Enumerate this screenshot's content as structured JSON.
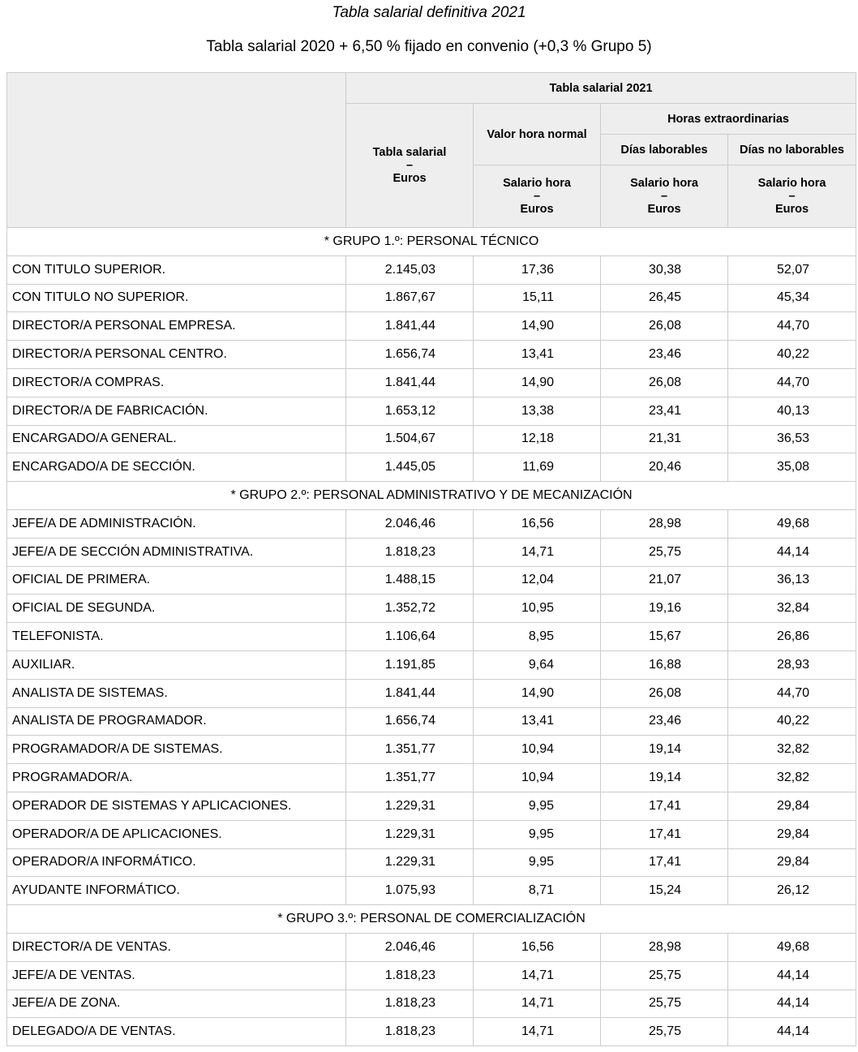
{
  "title": "Tabla salarial definitiva 2021",
  "subtitle": "Tabla salarial 2020 + 6,50 % fijado en convenio (+0,3 % Grupo 5)",
  "header": {
    "year": "Tabla salarial 2021",
    "tabla": [
      "Tabla salarial",
      "–",
      "Euros"
    ],
    "valor_hora": "Valor hora normal",
    "horas_extra": "Horas extraordinarias",
    "dias_lab": "Días laborables",
    "dias_no_lab": "Días no laborables",
    "salario_hora": [
      "Salario hora",
      "–",
      "Euros"
    ]
  },
  "groups": [
    {
      "title": "* GRUPO 1.º: PERSONAL TÉCNICO",
      "rows": [
        [
          "CON TITULO SUPERIOR.",
          "2.145,03",
          "17,36",
          "30,38",
          "52,07"
        ],
        [
          "CON TITULO NO SUPERIOR.",
          "1.867,67",
          "15,11",
          "26,45",
          "45,34"
        ],
        [
          "DIRECTOR/A PERSONAL EMPRESA.",
          "1.841,44",
          "14,90",
          "26,08",
          "44,70"
        ],
        [
          "DIRECTOR/A PERSONAL CENTRO.",
          "1.656,74",
          "13,41",
          "23,46",
          "40,22"
        ],
        [
          "DIRECTOR/A COMPRAS.",
          "1.841,44",
          "14,90",
          "26,08",
          "44,70"
        ],
        [
          "DIRECTOR/A DE FABRICACIÓN.",
          "1.653,12",
          "13,38",
          "23,41",
          "40,13"
        ],
        [
          "ENCARGADO/A GENERAL.",
          "1.504,67",
          "12,18",
          "21,31",
          "36,53"
        ],
        [
          "ENCARGADO/A DE SECCIÓN.",
          "1.445,05",
          "11,69",
          "20,46",
          "35,08"
        ]
      ]
    },
    {
      "title": "* GRUPO 2.º: PERSONAL ADMINISTRATIVO Y DE MECANIZACIÓN",
      "rows": [
        [
          "JEFE/A DE ADMINISTRACIÓN.",
          "2.046,46",
          "16,56",
          "28,98",
          "49,68"
        ],
        [
          "JEFE/A DE SECCIÓN ADMINISTRATIVA.",
          "1.818,23",
          "14,71",
          "25,75",
          "44,14"
        ],
        [
          "OFICIAL DE PRIMERA.",
          "1.488,15",
          "12,04",
          "21,07",
          "36,13"
        ],
        [
          "OFICIAL DE SEGUNDA.",
          "1.352,72",
          "10,95",
          "19,16",
          "32,84"
        ],
        [
          "TELEFONISTA.",
          "1.106,64",
          "8,95",
          "15,67",
          "26,86"
        ],
        [
          "AUXILIAR.",
          "1.191,85",
          "9,64",
          "16,88",
          "28,93"
        ],
        [
          "ANALISTA DE SISTEMAS.",
          "1.841,44",
          "14,90",
          "26,08",
          "44,70"
        ],
        [
          "ANALISTA DE PROGRAMADOR.",
          "1.656,74",
          "13,41",
          "23,46",
          "40,22"
        ],
        [
          "PROGRAMADOR/A DE SISTEMAS.",
          "1.351,77",
          "10,94",
          "19,14",
          "32,82"
        ],
        [
          "PROGRAMADOR/A.",
          "1.351,77",
          "10,94",
          "19,14",
          "32,82"
        ],
        [
          "OPERADOR DE SISTEMAS Y APLICACIONES.",
          "1.229,31",
          "9,95",
          "17,41",
          "29,84"
        ],
        [
          "OPERADOR/A DE APLICACIONES.",
          "1.229,31",
          "9,95",
          "17,41",
          "29,84"
        ],
        [
          "OPERADOR/A INFORMÁTICO.",
          "1.229,31",
          "9,95",
          "17,41",
          "29,84"
        ],
        [
          "AYUDANTE INFORMÁTICO.",
          "1.075,93",
          "8,71",
          "15,24",
          "26,12"
        ]
      ]
    },
    {
      "title": "* GRUPO 3.º: PERSONAL DE COMERCIALIZACIÓN",
      "rows": [
        [
          "DIRECTOR/A DE VENTAS.",
          "2.046,46",
          "16,56",
          "28,98",
          "49,68"
        ],
        [
          "JEFE/A DE VENTAS.",
          "1.818,23",
          "14,71",
          "25,75",
          "44,14"
        ],
        [
          "JEFE/A DE ZONA.",
          "1.818,23",
          "14,71",
          "25,75",
          "44,14"
        ],
        [
          "DELEGADO/A DE VENTAS.",
          "1.818,23",
          "14,71",
          "25,75",
          "44,14"
        ]
      ]
    }
  ]
}
